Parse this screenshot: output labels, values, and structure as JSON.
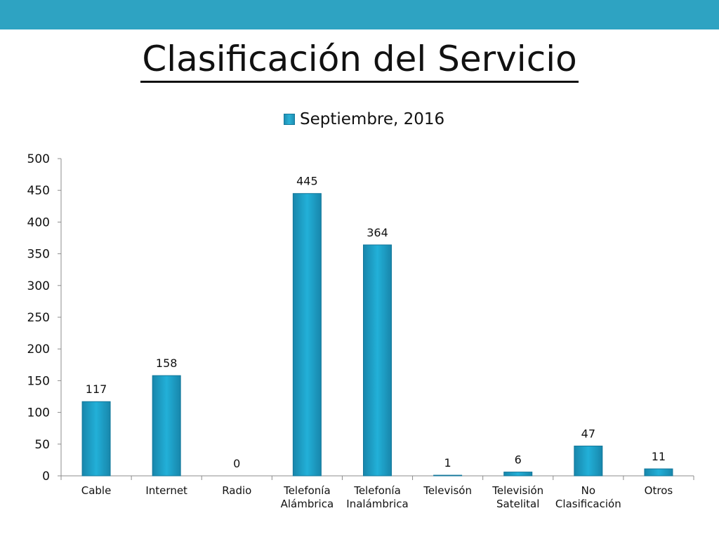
{
  "slide": {
    "title": "Clasificación del Servicio",
    "accent_color": "#2ea3c2"
  },
  "chart_data": {
    "type": "bar",
    "categories": [
      [
        "Cable"
      ],
      [
        "Internet"
      ],
      [
        "Radio"
      ],
      [
        "Telefonía",
        "Alámbrica"
      ],
      [
        "Telefonía",
        "Inalámbrica"
      ],
      [
        "Televisón"
      ],
      [
        "Televisión",
        "Satelital"
      ],
      [
        "No",
        "Clasificación"
      ],
      [
        "Otros"
      ]
    ],
    "series": [
      {
        "name": "Septiembre, 2016",
        "values": [
          117,
          158,
          0,
          445,
          364,
          1,
          6,
          47,
          11
        ],
        "color": "#1fa5cc"
      }
    ],
    "ylim": [
      0,
      500
    ],
    "yticks": [
      0,
      50,
      100,
      150,
      200,
      250,
      300,
      350,
      400,
      450,
      500
    ],
    "grid": false,
    "legend_position": "top",
    "data_labels": true
  }
}
